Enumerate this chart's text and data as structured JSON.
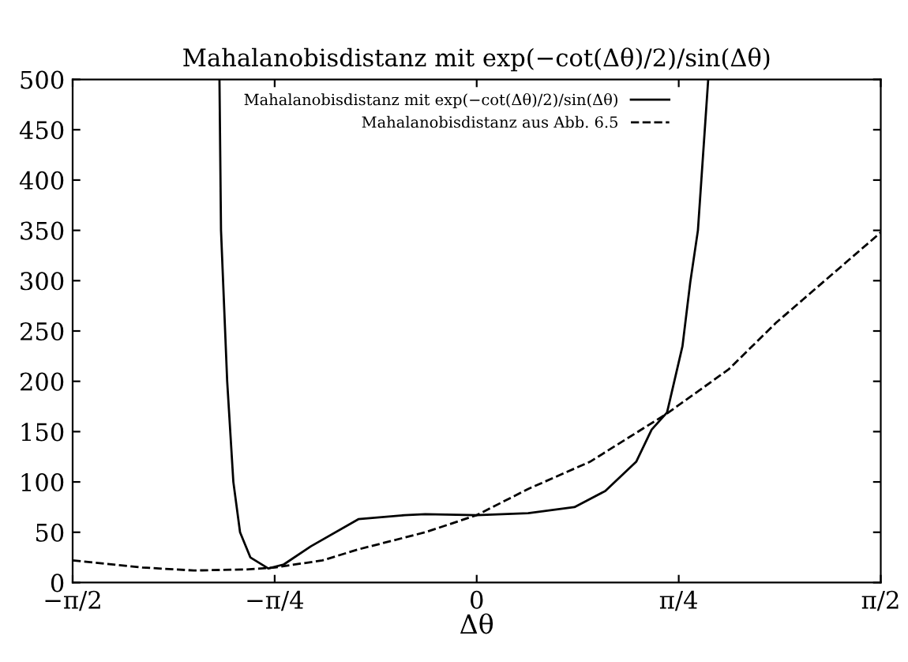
{
  "chart_data": {
    "type": "line",
    "title": "Mahalanobisdistanz mit exp(−cot(Δθ)/2)/sin(Δθ)",
    "xlabel": "Δθ",
    "series": [
      {
        "name": "Mahalanobisdistanz mit exp(−cot(Δθ)/2)/sin(Δθ)",
        "color": "#000000",
        "line_style": "solid",
        "x": [
          -1.0,
          -0.994,
          -0.97,
          -0.946,
          -0.92,
          -0.88,
          -0.81,
          -0.75,
          -0.645,
          -0.46,
          -0.28,
          -0.2,
          0,
          0.2,
          0.38,
          0.5,
          0.62,
          0.68,
          0.74,
          0.8,
          0.83,
          0.86,
          0.9
        ],
        "values": [
          500,
          350,
          200,
          100,
          50,
          25,
          14,
          18,
          36,
          63,
          67,
          68,
          67,
          69,
          75,
          91,
          120,
          152,
          169,
          235,
          298,
          350,
          500
        ]
      },
      {
        "name": "Mahalanobisdistanz aus Abb. 6.5",
        "color": "#000000",
        "line_style": "dashed",
        "x": [
          -1.5708,
          -1.3,
          -1.1,
          -0.9,
          -0.785,
          -0.6,
          -0.46,
          -0.2,
          0,
          0.2,
          0.44,
          0.74,
          0.98,
          1.163,
          1.5708
        ],
        "values": [
          22,
          15,
          12,
          13,
          15,
          22,
          33,
          50,
          67,
          93,
          120,
          168,
          212,
          258,
          348
        ]
      }
    ],
    "xlim": [
      -1.5708,
      1.5708
    ],
    "ylim": [
      0,
      500
    ],
    "xticks": [
      {
        "value": -1.5708,
        "label": "−π/2"
      },
      {
        "value": -0.7854,
        "label": "−π/4"
      },
      0,
      {
        "value": 0.7854,
        "label": "π/4"
      },
      {
        "value": 1.5708,
        "label": "π/2"
      }
    ],
    "yticks": [
      0,
      50,
      100,
      150,
      200,
      250,
      300,
      350,
      400,
      450,
      500
    ],
    "legend": "top",
    "grid": false,
    "marker": "none"
  }
}
